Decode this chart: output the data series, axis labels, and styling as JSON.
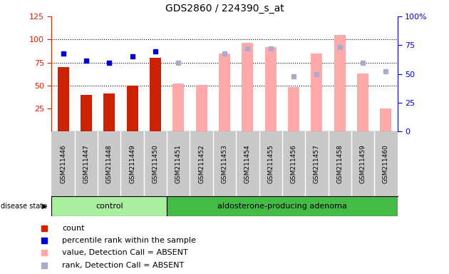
{
  "title": "GDS2860 / 224390_s_at",
  "samples": [
    "GSM211446",
    "GSM211447",
    "GSM211448",
    "GSM211449",
    "GSM211450",
    "GSM211451",
    "GSM211452",
    "GSM211453",
    "GSM211454",
    "GSM211455",
    "GSM211456",
    "GSM211457",
    "GSM211458",
    "GSM211459",
    "GSM211460"
  ],
  "control_count": 5,
  "groups": [
    "control",
    "aldosterone-producing adenoma"
  ],
  "left_ylim": [
    0,
    125
  ],
  "right_ylim": [
    0,
    100
  ],
  "left_yticks": [
    25,
    50,
    75,
    100,
    125
  ],
  "right_yticks": [
    0,
    25,
    50,
    75,
    100
  ],
  "red_bar_values": [
    70,
    40,
    41,
    50,
    80,
    null,
    null,
    null,
    null,
    null,
    null,
    null,
    null,
    null,
    null
  ],
  "pink_bar_values": [
    null,
    null,
    null,
    null,
    null,
    52,
    51,
    85,
    96,
    92,
    48,
    85,
    105,
    63,
    25
  ],
  "blue_dot_values": [
    85,
    77,
    75,
    82,
    87,
    null,
    null,
    null,
    null,
    null,
    null,
    null,
    null,
    null,
    null
  ],
  "lightblue_dot_values": [
    null,
    null,
    null,
    null,
    null,
    75,
    null,
    85,
    90,
    90,
    60,
    62,
    92,
    75,
    65
  ],
  "red_color": "#cc2200",
  "pink_color": "#ffaaaa",
  "blue_color": "#0000cc",
  "lightblue_color": "#aaaacc",
  "grid_color": "#000000",
  "bg_color": "#ffffff",
  "tick_area_color": "#c8c8c8",
  "control_group_color": "#aaeea0",
  "adenoma_group_color": "#44bb44",
  "left_axis_color": "#cc2200",
  "right_axis_color": "#0000cc",
  "legend_items": [
    {
      "label": "count",
      "color": "#cc2200"
    },
    {
      "label": "percentile rank within the sample",
      "color": "#0000cc"
    },
    {
      "label": "value, Detection Call = ABSENT",
      "color": "#ffaaaa"
    },
    {
      "label": "rank, Detection Call = ABSENT",
      "color": "#aaaacc"
    }
  ]
}
